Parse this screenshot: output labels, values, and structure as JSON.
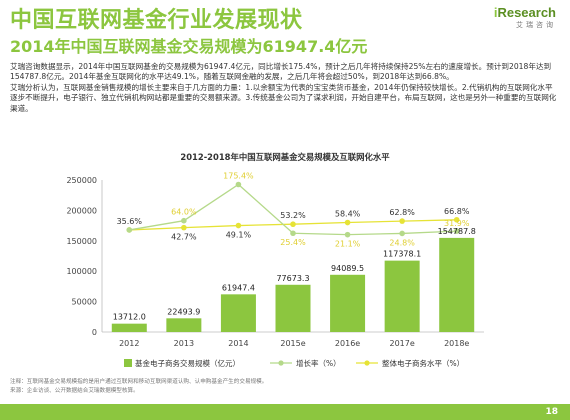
{
  "header": {
    "title": "中国互联网基金行业发展现状",
    "subtitle": "2014年中国互联网基金交易规模为61947.4亿元",
    "logo_main": "Research",
    "logo_i": "i",
    "logo_sub": "艾瑞咨询"
  },
  "paragraphs": [
    "艾瑞咨询数据显示，2014年中国互联网基金的交易规模为61947.4亿元，同比增长175.4%，预计之后几年将持续保持25%左右的速度增长。预计到2018年达到154787.8亿元。2014年基金互联网化的水平达49.1%，随着互联网金融的发展，之后几年将会超过50%，到2018年达到66.8%。",
    "艾瑞分析认为，互联网基金销售规模的增长主要来自于几方面的力量：1.以余额宝为代表的宝宝类货币基金，2014年仍保持较快增长。2.代销机构的互联网化水平逐步不断提升，电子银行、独立代销机构网站都是重要的交易额来源。3.传统基金公司为了谋求利润，开始自建平台，布局互联网，这也是另外一种重要的互联网化渠道。"
  ],
  "chart_data": {
    "type": "bar",
    "title": "2012-2018年中国互联网基金交易规模及互联网化水平",
    "categories": [
      "2012",
      "2013",
      "2014",
      "2015e",
      "2016e",
      "2017e",
      "2018e"
    ],
    "series": [
      {
        "name": "基金电子商务交易规模（亿元）",
        "type": "bar",
        "axis": "left",
        "values": [
          13712.0,
          22493.9,
          61947.4,
          77673.3,
          94089.5,
          117378.1,
          154787.8
        ],
        "labels": [
          "13712.0",
          "22493.9",
          "61947.4",
          "77673.3",
          "94089.5",
          "117378.1",
          "154787.8"
        ]
      },
      {
        "name": "增长率（%）",
        "type": "line",
        "axis": "right",
        "values": [
          35.6,
          64.0,
          175.4,
          25.4,
          21.1,
          24.8,
          31.9
        ],
        "labels": [
          "",
          "64.0%",
          "175.4%",
          "25.4%",
          "21.1%",
          "24.8%",
          "31.9%"
        ]
      },
      {
        "name": "整体电子商务水平（%）",
        "type": "line",
        "axis": "right",
        "values": [
          35.6,
          42.7,
          49.1,
          53.2,
          58.4,
          62.8,
          66.8
        ],
        "labels": [
          "35.6%",
          "42.7%",
          "49.1%",
          "53.2%",
          "58.4%",
          "62.8%",
          "66.8%"
        ]
      }
    ],
    "yticks": [
      "0",
      "50000",
      "100000",
      "150000",
      "200000",
      "250000"
    ],
    "ylim": [
      0,
      250000
    ],
    "grid": false,
    "legend": "bottom"
  },
  "colors": {
    "accent": "#8cc63f",
    "bar": "#8cc63f",
    "growth_line": "#b5d98a",
    "overall_line": "#e6e336",
    "growth_label": "#e0cf33",
    "overall_label": "#333333"
  },
  "footnote": {
    "line1": "注释：互联网基金交易规模指的是用户通过互联网和移动互联网渠道认购、认申购基金产生的交易规模。",
    "line2": "来源：企业访谈、公开数据结合艾瑞数据模型核算。"
  },
  "page_number": "18"
}
